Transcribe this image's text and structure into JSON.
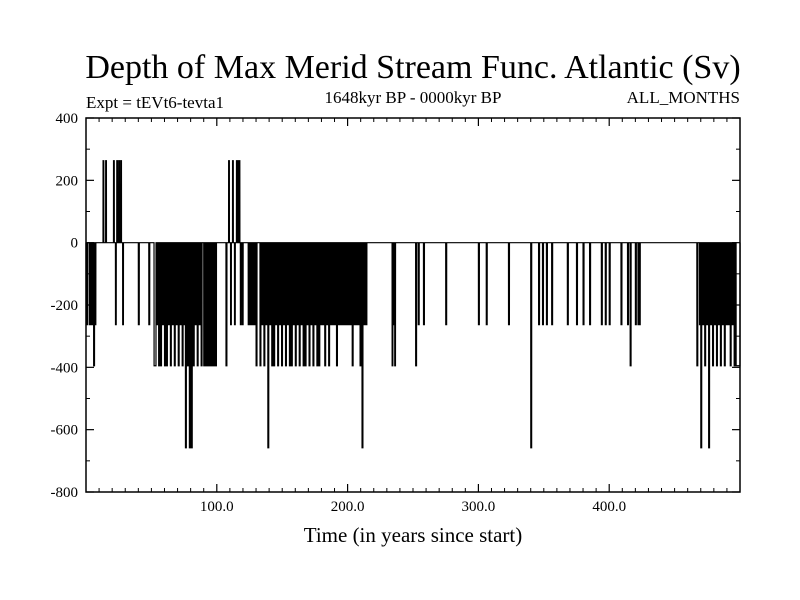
{
  "chart_data": {
    "type": "line",
    "title": "Depth of Max Merid Stream Func. Atlantic (Sv)",
    "subtitle_left": "Expt = tEVt6-tevta1",
    "subtitle_center": "1648kyr BP - 0000kyr BP",
    "subtitle_right": "ALL_MONTHS",
    "xlabel": "Time (in years since start)",
    "ylabel": "",
    "xlim": [
      0,
      500
    ],
    "ylim": [
      -800,
      400
    ],
    "xticks": [
      100,
      200,
      300,
      400
    ],
    "xtick_labels": [
      "100.0",
      "200.0",
      "300.0",
      "400.0"
    ],
    "yticks": [
      400,
      200,
      0,
      -200,
      -400,
      -600,
      -800
    ],
    "ytick_labels": [
      "400",
      "200",
      "0",
      "-200",
      "-400",
      "-600",
      "-800"
    ],
    "levels": [
      263,
      0,
      -263,
      -395,
      -658
    ],
    "series": [
      {
        "name": "Depth of Max Merid Stream Func.",
        "step": 0.5,
        "events": [
          [
            0,
            0.6,
            -2
          ],
          [
            0.6,
            1.2,
            -1
          ],
          [
            2.5,
            3.1,
            -1
          ],
          [
            3.1,
            3.7,
            -2
          ],
          [
            4.5,
            5.2,
            -1
          ],
          [
            5.8,
            6.5,
            -3
          ],
          [
            6.8,
            7.5,
            -2
          ],
          [
            13,
            13.6,
            1
          ],
          [
            15,
            15.6,
            1
          ],
          [
            21,
            21.6,
            1
          ],
          [
            22.5,
            23.1,
            -2
          ],
          [
            23.5,
            24.1,
            1
          ],
          [
            25,
            25.6,
            1
          ],
          [
            26.5,
            27.1,
            1
          ],
          [
            28,
            28.6,
            -1
          ],
          [
            40,
            40.7,
            -2
          ],
          [
            48,
            48.7,
            -1
          ],
          [
            52,
            53.5,
            -3
          ],
          [
            54,
            54.7,
            -1
          ],
          [
            55.5,
            56.2,
            -3
          ],
          [
            57,
            57.7,
            -3
          ],
          [
            58.5,
            59.2,
            -1
          ],
          [
            60,
            60.7,
            -3
          ],
          [
            61.5,
            62.2,
            -3
          ],
          [
            63,
            63.7,
            -1
          ],
          [
            64.5,
            65.2,
            -3
          ],
          [
            66,
            66.7,
            -2
          ],
          [
            67.5,
            68.2,
            -3
          ],
          [
            69,
            69.7,
            -1
          ],
          [
            70.5,
            71.2,
            -3
          ],
          [
            72,
            72.7,
            -2
          ],
          [
            73.5,
            74.2,
            -3
          ],
          [
            75,
            75.7,
            -1
          ],
          [
            76,
            76.7,
            -4
          ],
          [
            77.5,
            78.2,
            -3
          ],
          [
            79,
            79.7,
            -4
          ],
          [
            80.5,
            81.2,
            -4
          ],
          [
            82,
            82.7,
            -3
          ],
          [
            83.5,
            84.2,
            -1
          ],
          [
            85,
            85.7,
            -3
          ],
          [
            86.5,
            87.2,
            -2
          ],
          [
            88,
            88.7,
            -3
          ],
          [
            90,
            90.7,
            -3
          ],
          [
            91.5,
            92.2,
            -3
          ],
          [
            93,
            93.7,
            -3
          ],
          [
            94.5,
            95.2,
            -3
          ],
          [
            96,
            96.7,
            -3
          ],
          [
            97.5,
            98.2,
            -3
          ],
          [
            99,
            99.7,
            -3
          ],
          [
            107,
            107.7,
            -3
          ],
          [
            109,
            109.6,
            1
          ],
          [
            110.5,
            111.1,
            -1
          ],
          [
            112,
            112.6,
            1
          ],
          [
            113.5,
            114.1,
            -1
          ],
          [
            115,
            115.6,
            1
          ],
          [
            116,
            116.6,
            1
          ],
          [
            117,
            117.6,
            1
          ],
          [
            118,
            118.6,
            -1
          ],
          [
            119.5,
            120.1,
            -2
          ],
          [
            124,
            124.7,
            -2
          ],
          [
            125,
            125.7,
            -1
          ],
          [
            126,
            126.7,
            -2
          ],
          [
            127,
            127.7,
            -1
          ],
          [
            128,
            128.7,
            -2
          ],
          [
            129,
            129.7,
            -2
          ],
          [
            130,
            130.7,
            -3
          ],
          [
            133,
            133.7,
            -3
          ],
          [
            134.5,
            135.2,
            -1
          ],
          [
            136,
            136.7,
            -3
          ],
          [
            137.5,
            138.2,
            -2
          ],
          [
            139,
            139.7,
            -4
          ],
          [
            140.5,
            141.2,
            -2
          ],
          [
            142,
            142.7,
            -3
          ],
          [
            143.5,
            144.2,
            -3
          ],
          [
            145,
            145.7,
            -1
          ],
          [
            146.5,
            147.2,
            -3
          ],
          [
            148,
            148.7,
            -2
          ],
          [
            149.5,
            150.2,
            -3
          ],
          [
            151,
            151.7,
            -2
          ],
          [
            152.5,
            153.2,
            -3
          ],
          [
            154,
            154.7,
            -1
          ],
          [
            155.5,
            156.2,
            -3
          ],
          [
            157,
            157.7,
            -3
          ],
          [
            158.5,
            159.2,
            -1
          ],
          [
            160,
            160.7,
            -3
          ],
          [
            161.5,
            162.2,
            -2
          ],
          [
            163,
            163.7,
            -3
          ],
          [
            164.5,
            165.2,
            -1
          ],
          [
            166,
            166.7,
            -3
          ],
          [
            167.5,
            168.2,
            -3
          ],
          [
            169,
            169.7,
            -2
          ],
          [
            170.5,
            171.2,
            -3
          ],
          [
            172,
            172.7,
            -1
          ],
          [
            173.5,
            174.2,
            -3
          ],
          [
            175,
            175.7,
            -2
          ],
          [
            176.5,
            177.2,
            -3
          ],
          [
            178,
            178.7,
            -3
          ],
          [
            179.5,
            180.2,
            -1
          ],
          [
            181,
            181.7,
            -2
          ],
          [
            182.5,
            183.2,
            -3
          ],
          [
            184,
            184.7,
            -2
          ],
          [
            185.5,
            186.2,
            -3
          ],
          [
            187,
            187.7,
            -1
          ],
          [
            188.5,
            189.2,
            -2
          ],
          [
            190,
            190.7,
            -2
          ],
          [
            191.5,
            192.2,
            -3
          ],
          [
            193,
            193.7,
            -2
          ],
          [
            194.5,
            195.2,
            -2
          ],
          [
            196,
            196.7,
            -1
          ],
          [
            197.5,
            198.2,
            -2
          ],
          [
            199,
            199.7,
            -2
          ],
          [
            200.5,
            201.2,
            -2
          ],
          [
            202,
            202.7,
            -1
          ],
          [
            203.5,
            204.2,
            -3
          ],
          [
            205,
            205.7,
            -2
          ],
          [
            206.5,
            207.2,
            -2
          ],
          [
            208,
            208.7,
            -1
          ],
          [
            209.5,
            210.2,
            -3
          ],
          [
            211,
            211.7,
            -4
          ],
          [
            212.5,
            213.2,
            -1
          ],
          [
            214,
            214.7,
            -2
          ],
          [
            234,
            234.6,
            -3
          ],
          [
            235,
            235.6,
            -1
          ],
          [
            236,
            236.6,
            -3
          ],
          [
            252,
            252.7,
            -3
          ],
          [
            254,
            254.7,
            -2
          ],
          [
            258,
            258.7,
            -1
          ],
          [
            275,
            275.7,
            -2
          ],
          [
            300,
            300.7,
            -1
          ],
          [
            306,
            306.7,
            -2
          ],
          [
            323,
            323.7,
            -2
          ],
          [
            340,
            340.7,
            -4
          ],
          [
            346,
            346.7,
            -1
          ],
          [
            349,
            349.7,
            -2
          ],
          [
            352,
            352.7,
            -1
          ],
          [
            356,
            356.7,
            -2
          ],
          [
            368,
            368.7,
            -2
          ],
          [
            375,
            375.7,
            -1
          ],
          [
            380,
            380.7,
            -2
          ],
          [
            385,
            385.7,
            -1
          ],
          [
            394,
            394.7,
            -2
          ],
          [
            397,
            397.7,
            -1
          ],
          [
            400,
            400.7,
            -2
          ],
          [
            409,
            409.7,
            -1
          ],
          [
            414,
            414.7,
            -2
          ],
          [
            416,
            416.7,
            -3
          ],
          [
            420,
            420.7,
            -2
          ],
          [
            422,
            422.7,
            -2
          ],
          [
            423,
            423.7,
            -1
          ],
          [
            467,
            467.7,
            -3
          ],
          [
            469,
            469.7,
            -1
          ],
          [
            470,
            470.7,
            -4
          ],
          [
            471.5,
            472.2,
            -2
          ],
          [
            473,
            473.7,
            -3
          ],
          [
            474.5,
            475.2,
            -1
          ],
          [
            476,
            476.7,
            -4
          ],
          [
            477.5,
            478.2,
            -2
          ],
          [
            479,
            479.7,
            -3
          ],
          [
            480.5,
            481.2,
            -1
          ],
          [
            482,
            482.7,
            -3
          ],
          [
            483.5,
            484.2,
            -2
          ],
          [
            485,
            485.7,
            -3
          ],
          [
            486.5,
            487.2,
            -1
          ],
          [
            488,
            488.7,
            -3
          ],
          [
            489.5,
            490.2,
            -2
          ],
          [
            491,
            491.7,
            -1
          ],
          [
            492.5,
            493.2,
            -3
          ],
          [
            494,
            494.7,
            -2
          ],
          [
            495.5,
            496.2,
            -3
          ],
          [
            497,
            500,
            -3
          ]
        ]
      }
    ]
  }
}
